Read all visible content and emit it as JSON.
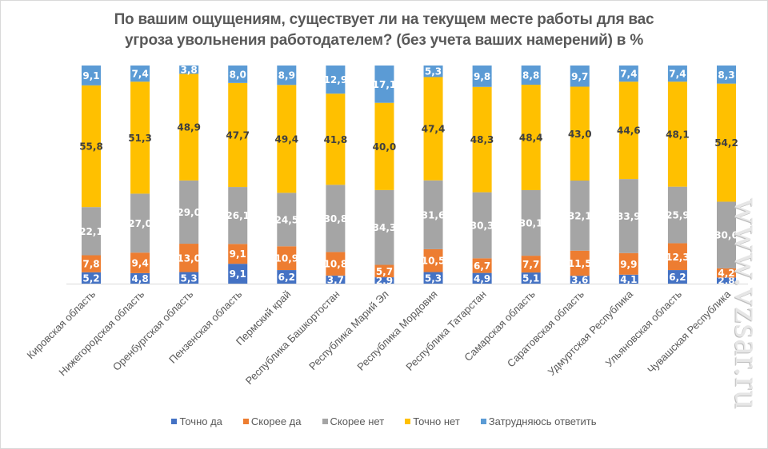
{
  "chart_data": {
    "type": "bar",
    "stacked": true,
    "percent_stacked": true,
    "title": "По вашим ощущениям, существует ли на текущем месте работы для вас угроза увольнения работодателем? (без учета ваших намерений) в %",
    "title_lines": [
      "По вашим ощущениям, существует ли на текущем месте работы для вас",
      "угроза увольнения работодателем? (без учета ваших намерений) в %"
    ],
    "xlabel": "",
    "ylabel": "",
    "ylim": [
      0,
      100
    ],
    "grid": false,
    "legend_position": "bottom",
    "categories": [
      "Кировская область",
      "Нижегородская область",
      "Оренбургская область",
      "Пензенская область",
      "Пермский край",
      "Республика Башкортостан",
      "Республика Марий Эл",
      "Республика Мордовия",
      "Республика Татарстан",
      "Самарская область",
      "Саратовская область",
      "Удмуртская Республика",
      "Ульяновская область",
      "Чувашская Республика"
    ],
    "series": [
      {
        "name": "Точно да",
        "color": "#4472c4",
        "label_color": "#ffffff",
        "values": [
          5.2,
          4.8,
          5.3,
          9.1,
          6.2,
          3.7,
          2.9,
          5.3,
          4.9,
          5.1,
          3.6,
          4.1,
          6.2,
          2.8
        ],
        "labels": [
          "5,2",
          "4,8",
          "5,3",
          "9,1",
          "6,2",
          "3,7",
          "2,9",
          "5,3",
          "4,9",
          "5,1",
          "3,6",
          "4,1",
          "6,2",
          "2,8"
        ]
      },
      {
        "name": "Скорее да",
        "color": "#ed7d31",
        "label_color": "#ffffff",
        "values": [
          7.8,
          9.4,
          13.0,
          9.1,
          10.9,
          10.8,
          5.7,
          10.5,
          6.7,
          7.7,
          11.5,
          9.9,
          12.3,
          4.2
        ],
        "labels": [
          "7,8",
          "9,4",
          "13,0",
          "9,1",
          "10,9",
          "10,8",
          "5,7",
          "10,5",
          "6,7",
          "7,7",
          "11,5",
          "9,9",
          "12,3",
          "4,2"
        ]
      },
      {
        "name": "Скорее нет",
        "color": "#a5a5a5",
        "label_color": "#ffffff",
        "values": [
          22.1,
          27.0,
          29.0,
          26.1,
          24.5,
          30.8,
          34.3,
          31.6,
          30.3,
          30.1,
          32.1,
          33.9,
          25.9,
          30.6
        ],
        "labels": [
          "22,1",
          "27,0",
          "29,0",
          "26,1",
          "24,5",
          "30,8",
          "34,3",
          "31,6",
          "30,3",
          "30,1",
          "32,1",
          "33,9",
          "25,9",
          "30,6"
        ]
      },
      {
        "name": "Точно нет",
        "color": "#ffc000",
        "label_color": "#404040",
        "values": [
          55.8,
          51.3,
          48.9,
          47.7,
          49.4,
          41.8,
          40.0,
          47.4,
          48.3,
          48.4,
          43.0,
          44.6,
          48.1,
          54.2
        ],
        "labels": [
          "55,8",
          "51,3",
          "48,9",
          "47,7",
          "49,4",
          "41,8",
          "40,0",
          "47,4",
          "48,3",
          "48,4",
          "43,0",
          "44,6",
          "48,1",
          "54,2"
        ]
      },
      {
        "name": "Затрудняюсь ответить",
        "color": "#5b9bd5",
        "label_color": "#ffffff",
        "values": [
          9.1,
          7.4,
          3.8,
          8.0,
          8.9,
          12.9,
          17.1,
          5.3,
          9.8,
          8.8,
          9.7,
          7.4,
          7.4,
          8.3
        ],
        "labels": [
          "9,1",
          "7,4",
          "3,8",
          "8,0",
          "8,9",
          "12,9",
          "17,1",
          "5,3",
          "9,8",
          "8,8",
          "9,7",
          "7,4",
          "7,4",
          "8,3"
        ]
      }
    ]
  },
  "watermark": "www.vzsar.ru"
}
